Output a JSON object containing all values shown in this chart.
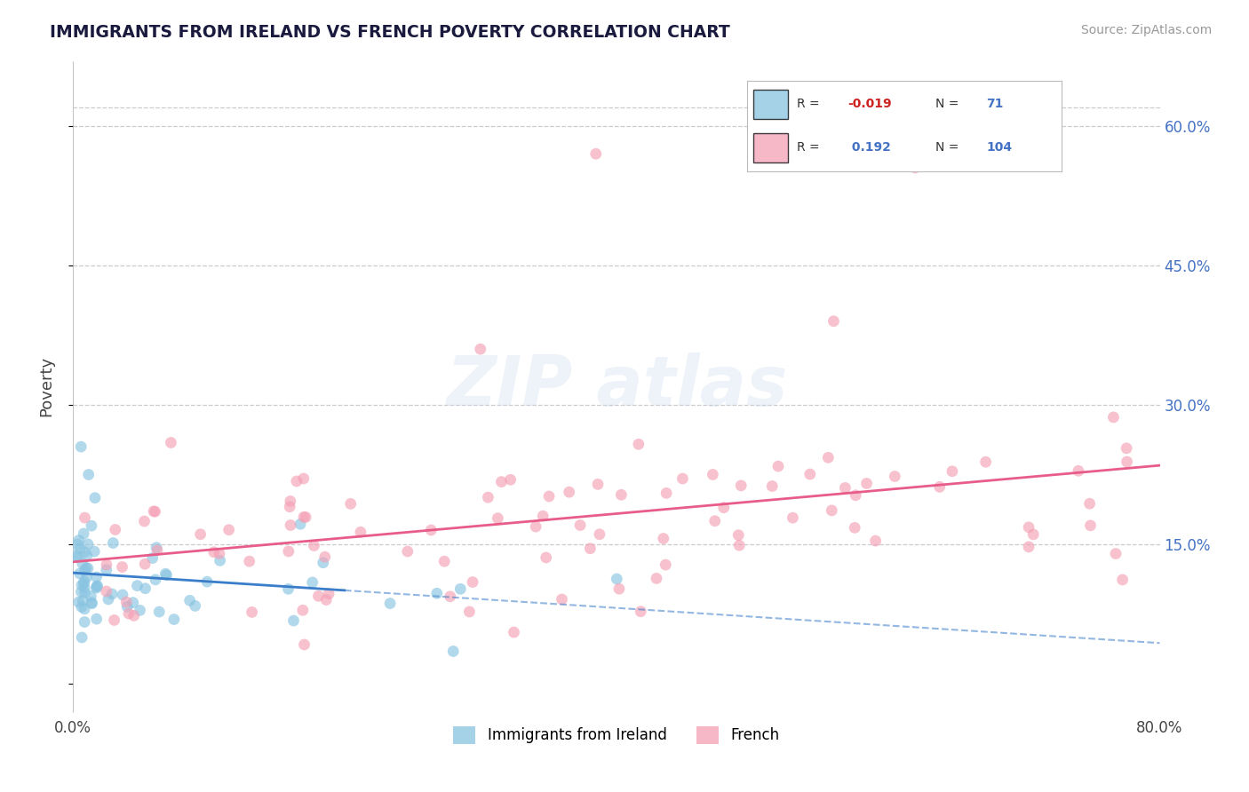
{
  "title": "IMMIGRANTS FROM IRELAND VS FRENCH POVERTY CORRELATION CHART",
  "source": "Source: ZipAtlas.com",
  "ylabel": "Poverty",
  "xlim": [
    0.0,
    80.0
  ],
  "ylim": [
    -3.0,
    67.0
  ],
  "blue_R": -0.019,
  "blue_N": 71,
  "pink_R": 0.192,
  "pink_N": 104,
  "blue_color": "#89C4E1",
  "pink_color": "#F4A0B5",
  "blue_line_color": "#3A7DC9",
  "pink_line_color": "#E85C8A",
  "blue_line_dashed_color": "#aaaacc",
  "legend_label_blue": "Immigrants from Ireland",
  "legend_label_pink": "French",
  "background_color": "#ffffff",
  "grid_color": "#cccccc",
  "title_color": "#1a1a3e",
  "source_color": "#999999",
  "ytick_vals": [
    15,
    30,
    45,
    60
  ],
  "ytick_labels": [
    "15.0%",
    "30.0%",
    "45.0%",
    "60.0%"
  ]
}
